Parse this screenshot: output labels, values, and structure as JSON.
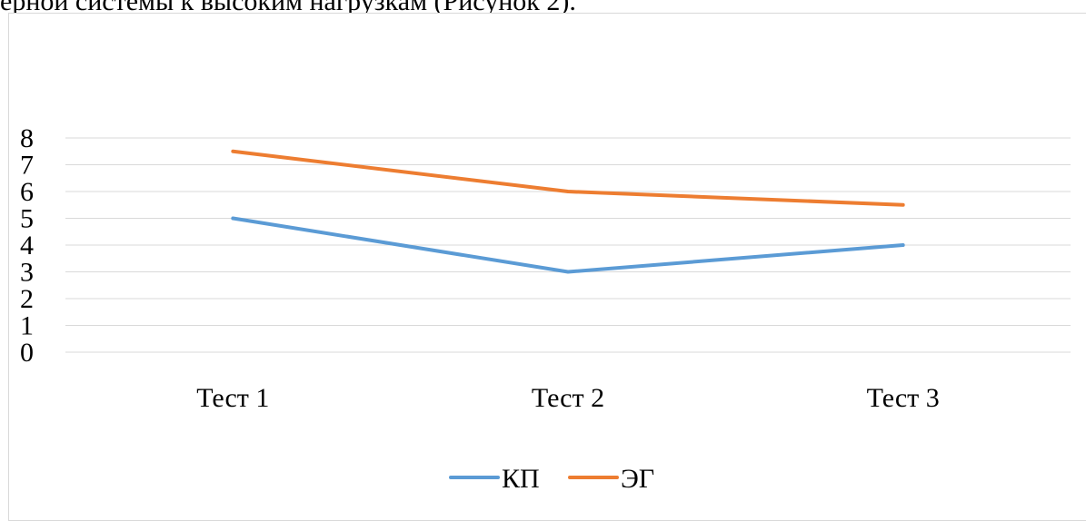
{
  "page": {
    "top_text": "ерной системы к высоким нагрузкам (Рисунок 2)."
  },
  "chart_data": {
    "type": "line",
    "title": "",
    "xlabel": "",
    "ylabel": "",
    "categories": [
      "Тест 1",
      "Тест 2",
      "Тест 3"
    ],
    "ylim": [
      0,
      8
    ],
    "yticks": [
      0,
      1,
      2,
      3,
      4,
      5,
      6,
      7,
      8
    ],
    "grid": true,
    "legend_position": "bottom",
    "series": [
      {
        "name": "КП",
        "values": [
          5,
          3,
          4
        ],
        "color": "#5b9bd5"
      },
      {
        "name": "ЭГ",
        "values": [
          7.5,
          6,
          5.5
        ],
        "color": "#ed7d31"
      }
    ]
  }
}
